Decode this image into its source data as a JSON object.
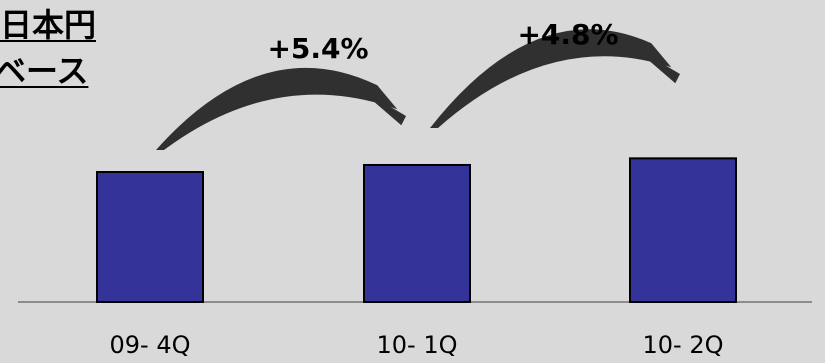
{
  "title": {
    "line1": "日本円",
    "line2": "ベース"
  },
  "chart_data": {
    "type": "bar",
    "categories": [
      "09- 4Q",
      "10- 1Q",
      "10- 2Q"
    ],
    "values": [
      100,
      105.4,
      110.5
    ],
    "annotations": [
      {
        "from": "09- 4Q",
        "to": "10- 1Q",
        "label": "+5.4%"
      },
      {
        "from": "10- 1Q",
        "to": "10- 2Q",
        "label": "+4.8%"
      }
    ],
    "bar_color": "#333399",
    "background": "#d9d9d9",
    "grid": false,
    "legend": "none"
  }
}
